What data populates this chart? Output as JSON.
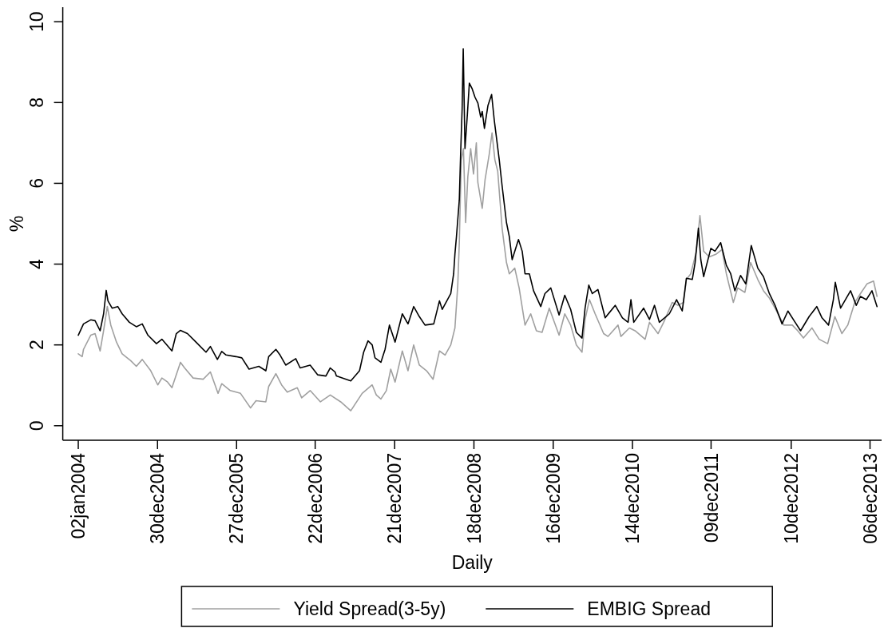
{
  "chart_data": {
    "type": "line",
    "xlabel": "Daily",
    "ylabel": "%",
    "xlim": [
      "2003-10-23",
      "2014-01-28"
    ],
    "ylim": [
      -0.36,
      10.36
    ],
    "xticks": [
      {
        "value": "2004-01-02",
        "label": "02jan2004"
      },
      {
        "value": "2004-12-30",
        "label": "30dec2004"
      },
      {
        "value": "2005-12-27",
        "label": "27dec2005"
      },
      {
        "value": "2006-12-22",
        "label": "22dec2006"
      },
      {
        "value": "2007-12-21",
        "label": "21dec2007"
      },
      {
        "value": "2008-12-18",
        "label": "18dec2008"
      },
      {
        "value": "2009-12-16",
        "label": "16dec2009"
      },
      {
        "value": "2010-12-14",
        "label": "14dec2010"
      },
      {
        "value": "2011-12-09",
        "label": "09dec2011"
      },
      {
        "value": "2012-12-10",
        "label": "10dec2012"
      },
      {
        "value": "2013-12-06",
        "label": "06dec2013"
      }
    ],
    "yticks": [
      0,
      2,
      4,
      6,
      8,
      10
    ],
    "legend": "bottom",
    "series": [
      {
        "name": "Yield Spread(3-5y)",
        "color": "#a0a0a0",
        "x": [
          "2004-01-02",
          "2004-01-20",
          "2004-01-26",
          "2004-02-28",
          "2004-03-19",
          "2004-04-11",
          "2004-04-27",
          "2004-05-14",
          "2004-05-30",
          "2004-06-25",
          "2004-07-21",
          "2004-08-29",
          "2004-09-24",
          "2004-10-21",
          "2004-11-29",
          "2004-12-31",
          "2005-01-19",
          "2005-02-14",
          "2005-03-06",
          "2005-04-14",
          "2005-05-03",
          "2005-06-11",
          "2005-07-27",
          "2005-08-29",
          "2005-10-03",
          "2005-10-20",
          "2005-11-28",
          "2006-01-14",
          "2006-03-01",
          "2006-03-26",
          "2006-05-10",
          "2006-05-23",
          "2006-06-25",
          "2006-07-21",
          "2006-08-16",
          "2006-10-01",
          "2006-10-21",
          "2006-11-29",
          "2007-01-15",
          "2007-03-01",
          "2007-04-18",
          "2007-06-03",
          "2007-07-25",
          "2007-09-09",
          "2007-09-28",
          "2007-10-19",
          "2007-11-13",
          "2007-12-03",
          "2007-12-23",
          "2008-01-25",
          "2008-02-20",
          "2008-03-17",
          "2008-04-12",
          "2008-05-15",
          "2008-06-14",
          "2008-07-13",
          "2008-08-08",
          "2008-09-03",
          "2008-09-22",
          "2008-10-05",
          "2008-10-12",
          "2008-10-21",
          "2008-10-31",
          "2008-11-10",
          "2008-11-20",
          "2008-12-03",
          "2008-12-16",
          "2008-12-29",
          "2009-01-05",
          "2009-01-25",
          "2009-02-07",
          "2009-02-26",
          "2009-03-11",
          "2009-03-24",
          "2009-04-06",
          "2009-04-26",
          "2009-05-16",
          "2009-05-29",
          "2009-06-23",
          "2009-07-13",
          "2009-08-09",
          "2009-09-04",
          "2009-09-30",
          "2009-10-26",
          "2009-11-28",
          "2010-01-12",
          "2010-02-07",
          "2010-03-06",
          "2010-04-01",
          "2010-04-27",
          "2010-05-11",
          "2010-05-31",
          "2010-06-26",
          "2010-08-04",
          "2010-08-24",
          "2010-10-09",
          "2010-10-22",
          "2010-11-30",
          "2010-12-26",
          "2011-02-10",
          "2011-03-02",
          "2011-04-10",
          "2011-05-06",
          "2011-06-14",
          "2011-07-10",
          "2011-08-05",
          "2011-08-18",
          "2011-09-07",
          "2011-10-03",
          "2011-10-19",
          "2011-11-05",
          "2011-12-01",
          "2012-01-02",
          "2012-01-28",
          "2012-02-17",
          "2012-03-20",
          "2012-04-09",
          "2012-05-12",
          "2012-06-07",
          "2012-07-10",
          "2012-08-05",
          "2012-09-01",
          "2012-09-27",
          "2012-11-06",
          "2012-12-15",
          "2013-01-09",
          "2013-02-04",
          "2013-03-15",
          "2013-04-17",
          "2013-05-26",
          "2013-06-28",
          "2013-07-30",
          "2013-08-26",
          "2013-09-27",
          "2013-10-23",
          "2013-11-22",
          "2013-12-22",
          "2014-01-07"
        ],
        "values": [
          1.78,
          1.71,
          1.89,
          2.24,
          2.28,
          1.85,
          2.35,
          2.95,
          2.49,
          2.07,
          1.78,
          1.61,
          1.47,
          1.64,
          1.36,
          1.01,
          1.18,
          1.08,
          0.94,
          1.57,
          1.43,
          1.18,
          1.15,
          1.33,
          0.8,
          1.04,
          0.87,
          0.8,
          0.44,
          0.62,
          0.59,
          0.97,
          1.29,
          1.01,
          0.83,
          0.94,
          0.69,
          0.87,
          0.59,
          0.76,
          0.59,
          0.37,
          0.8,
          1.01,
          0.76,
          0.66,
          0.87,
          1.4,
          1.08,
          1.85,
          1.36,
          2.0,
          1.5,
          1.36,
          1.15,
          1.85,
          1.75,
          2.0,
          2.42,
          3.48,
          4.53,
          6.58,
          6.86,
          5.03,
          6.16,
          6.86,
          6.23,
          7.0,
          6.02,
          5.38,
          6.09,
          6.72,
          7.25,
          6.58,
          6.3,
          4.89,
          4.04,
          3.76,
          3.9,
          3.41,
          2.49,
          2.77,
          2.35,
          2.31,
          2.91,
          2.24,
          2.77,
          2.49,
          2.0,
          1.82,
          2.63,
          3.12,
          2.77,
          2.28,
          2.21,
          2.49,
          2.21,
          2.42,
          2.35,
          2.14,
          2.56,
          2.28,
          2.56,
          3.05,
          2.98,
          3.05,
          3.62,
          3.76,
          4.32,
          5.2,
          4.32,
          4.18,
          4.25,
          4.36,
          3.76,
          3.05,
          3.41,
          3.3,
          4.04,
          3.62,
          3.34,
          3.16,
          2.91,
          2.49,
          2.49,
          2.35,
          2.17,
          2.42,
          2.14,
          2.03,
          2.7,
          2.28,
          2.49,
          3.05,
          3.27,
          3.51,
          3.58,
          3.2
        ]
      },
      {
        "name": "EMBIG Spread",
        "color": "#000000",
        "x": [
          "2004-01-02",
          "2004-01-26",
          "2004-02-28",
          "2004-03-19",
          "2004-04-11",
          "2004-04-27",
          "2004-05-09",
          "2004-05-17",
          "2004-06-05",
          "2004-07-01",
          "2004-07-21",
          "2004-08-23",
          "2004-09-24",
          "2004-10-21",
          "2004-11-16",
          "2004-12-25",
          "2005-01-19",
          "2005-03-06",
          "2005-03-26",
          "2005-04-14",
          "2005-05-16",
          "2005-06-24",
          "2005-08-09",
          "2005-08-29",
          "2005-09-30",
          "2005-10-20",
          "2005-11-09",
          "2005-12-24",
          "2006-01-20",
          "2006-02-22",
          "2006-04-08",
          "2006-05-10",
          "2006-05-23",
          "2006-06-25",
          "2006-07-14",
          "2006-08-09",
          "2006-09-24",
          "2006-10-14",
          "2006-11-29",
          "2007-01-02",
          "2007-02-09",
          "2007-03-01",
          "2007-03-23",
          "2007-03-29",
          "2007-06-03",
          "2007-07-13",
          "2007-08-01",
          "2007-08-21",
          "2007-09-09",
          "2007-09-22",
          "2007-10-19",
          "2007-11-07",
          "2007-11-27",
          "2007-12-23",
          "2008-01-25",
          "2008-02-20",
          "2008-03-17",
          "2008-04-12",
          "2008-05-08",
          "2008-06-17",
          "2008-07-13",
          "2008-07-26",
          "2008-09-03",
          "2008-09-16",
          "2008-09-22",
          "2008-09-29",
          "2008-10-12",
          "2008-10-18",
          "2008-10-25",
          "2008-10-30",
          "2008-11-07",
          "2008-11-18",
          "2008-11-27",
          "2008-12-10",
          "2008-12-23",
          "2009-01-05",
          "2009-01-18",
          "2009-01-25",
          "2009-02-04",
          "2009-02-20",
          "2009-03-09",
          "2009-03-21",
          "2009-03-31",
          "2009-04-13",
          "2009-04-26",
          "2009-05-16",
          "2009-05-29",
          "2009-06-11",
          "2009-07-10",
          "2009-07-27",
          "2009-08-09",
          "2009-08-29",
          "2009-09-17",
          "2009-10-20",
          "2009-11-08",
          "2009-12-05",
          "2010-01-12",
          "2010-02-07",
          "2010-03-06",
          "2010-04-01",
          "2010-04-27",
          "2010-05-11",
          "2010-05-28",
          "2010-06-13",
          "2010-07-09",
          "2010-08-11",
          "2010-09-26",
          "2010-10-29",
          "2010-11-24",
          "2010-12-07",
          "2010-12-20",
          "2011-02-03",
          "2011-03-02",
          "2011-03-25",
          "2011-04-16",
          "2011-06-01",
          "2011-07-04",
          "2011-07-30",
          "2011-08-18",
          "2011-09-14",
          "2011-09-27",
          "2011-10-12",
          "2011-10-23",
          "2011-11-05",
          "2011-11-18",
          "2011-12-08",
          "2011-12-27",
          "2012-01-22",
          "2012-02-17",
          "2012-03-08",
          "2012-03-27",
          "2012-04-22",
          "2012-05-16",
          "2012-06-10",
          "2012-07-10",
          "2012-08-05",
          "2012-09-01",
          "2012-09-27",
          "2012-10-29",
          "2012-11-25",
          "2012-12-28",
          "2013-01-22",
          "2013-03-02",
          "2013-04-06",
          "2013-04-30",
          "2013-05-30",
          "2013-06-21",
          "2013-06-30",
          "2013-07-24",
          "2013-09-08",
          "2013-10-04",
          "2013-10-23",
          "2013-11-19",
          "2013-12-15",
          "2014-01-07"
        ],
        "values": [
          2.24,
          2.52,
          2.62,
          2.6,
          2.35,
          2.77,
          3.35,
          3.09,
          2.91,
          2.95,
          2.77,
          2.56,
          2.45,
          2.52,
          2.24,
          2.03,
          2.14,
          1.85,
          2.28,
          2.36,
          2.28,
          2.07,
          1.82,
          1.96,
          1.64,
          1.84,
          1.75,
          1.71,
          1.68,
          1.4,
          1.47,
          1.36,
          1.71,
          1.89,
          1.75,
          1.5,
          1.66,
          1.43,
          1.5,
          1.26,
          1.23,
          1.43,
          1.33,
          1.23,
          1.11,
          1.36,
          1.82,
          2.1,
          2.0,
          1.68,
          1.57,
          1.89,
          2.49,
          2.07,
          2.77,
          2.52,
          2.95,
          2.7,
          2.49,
          2.52,
          3.09,
          2.88,
          3.27,
          3.76,
          4.25,
          4.68,
          5.59,
          6.72,
          7.85,
          9.33,
          6.86,
          7.71,
          8.48,
          8.34,
          8.13,
          7.99,
          7.64,
          7.78,
          7.36,
          7.92,
          8.2,
          7.57,
          7.14,
          6.58,
          5.94,
          5.03,
          4.68,
          4.11,
          4.61,
          4.32,
          3.76,
          3.76,
          3.34,
          2.95,
          3.27,
          3.41,
          2.74,
          3.23,
          2.88,
          2.31,
          2.17,
          2.91,
          3.48,
          3.27,
          3.37,
          2.67,
          2.98,
          2.67,
          2.56,
          3.12,
          2.56,
          2.91,
          2.63,
          2.98,
          2.56,
          2.77,
          3.12,
          2.84,
          3.65,
          3.62,
          4.04,
          4.89,
          4.11,
          3.69,
          3.97,
          4.39,
          4.32,
          4.53,
          3.97,
          3.76,
          3.34,
          3.72,
          3.51,
          4.46,
          3.9,
          3.69,
          3.27,
          2.98,
          2.52,
          2.84,
          2.56,
          2.35,
          2.7,
          2.95,
          2.67,
          2.49,
          3.12,
          3.55,
          2.91,
          3.34,
          2.98,
          3.2,
          3.12,
          3.34,
          2.95
        ]
      }
    ]
  }
}
